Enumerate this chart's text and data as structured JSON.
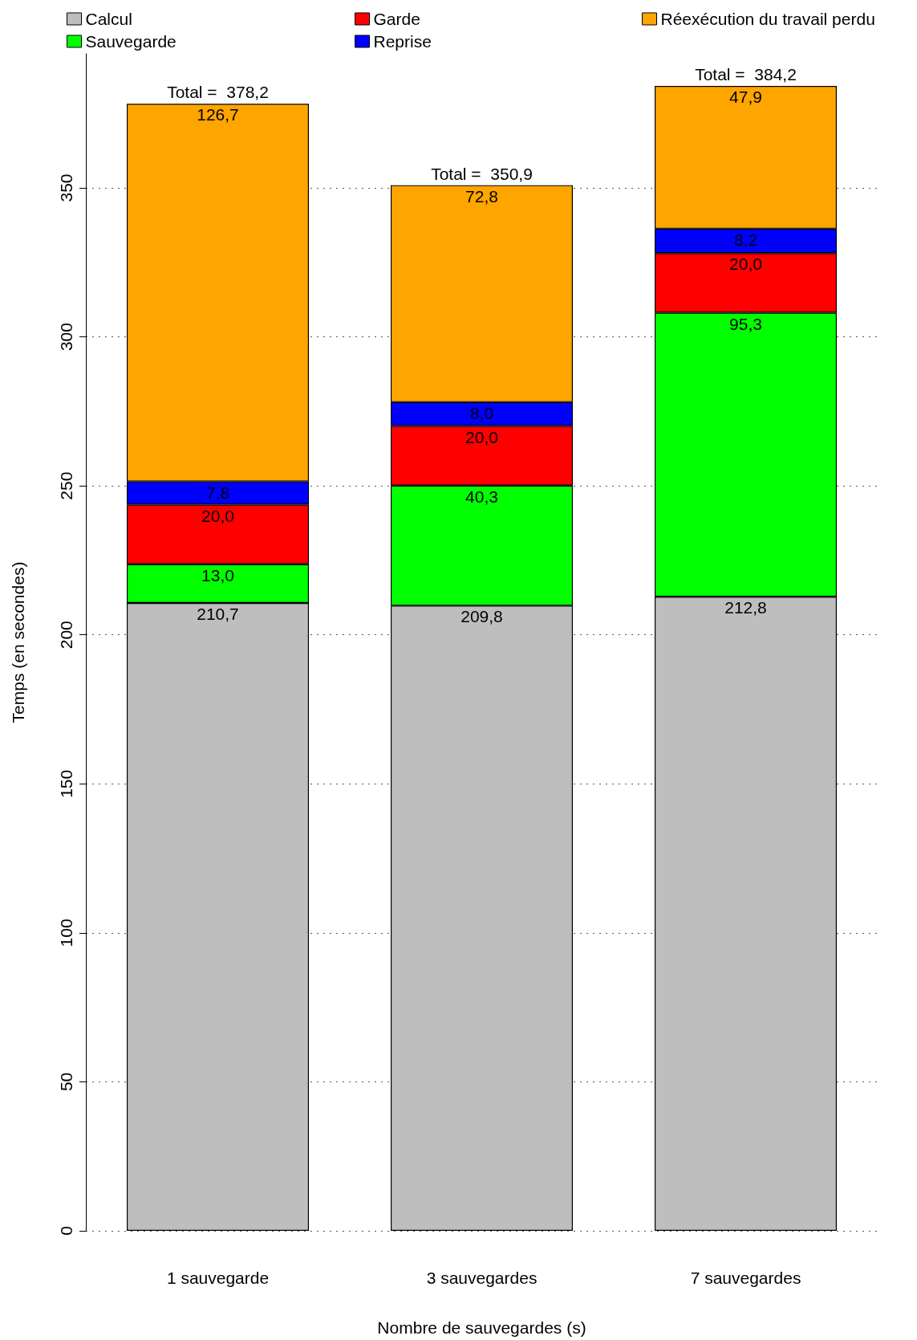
{
  "chart_data": {
    "type": "bar",
    "stacked": true,
    "xlabel": "Nombre de sauvegardes (s)",
    "ylabel": "Temps (en secondes)",
    "categories": [
      "1 sauvegarde",
      "3 sauvegardes",
      "7 sauvegardes"
    ],
    "series": [
      {
        "name": "Calcul",
        "color": "#bebebe",
        "values": [
          210.7,
          209.8,
          212.8
        ],
        "value_labels": [
          "210,7",
          "209,8",
          "212,8"
        ]
      },
      {
        "name": "Sauvegarde",
        "color": "#00ff00",
        "values": [
          13.0,
          40.3,
          95.3
        ],
        "value_labels": [
          "13,0",
          "40,3",
          "95,3"
        ]
      },
      {
        "name": "Garde",
        "color": "#ff0000",
        "values": [
          20.0,
          20.0,
          20.0
        ],
        "value_labels": [
          "20,0",
          "20,0",
          "20,0"
        ]
      },
      {
        "name": "Reprise",
        "color": "#0000ff",
        "values": [
          7.8,
          8.0,
          8.2
        ],
        "value_labels": [
          "7,8",
          "8,0",
          "8,2"
        ]
      },
      {
        "name": "Réexécution du travail perdu",
        "color": "#ffa500",
        "values": [
          126.7,
          72.8,
          47.9
        ],
        "value_labels": [
          "126,7",
          "72,8",
          "47,9"
        ]
      }
    ],
    "totals": [
      "Total =  378,2",
      "Total =  350,9",
      "Total =  384,2"
    ],
    "ylim": [
      0,
      395
    ],
    "yticks": [
      0,
      50,
      100,
      150,
      200,
      250,
      300,
      350
    ],
    "grid": "y",
    "legend": "top"
  }
}
